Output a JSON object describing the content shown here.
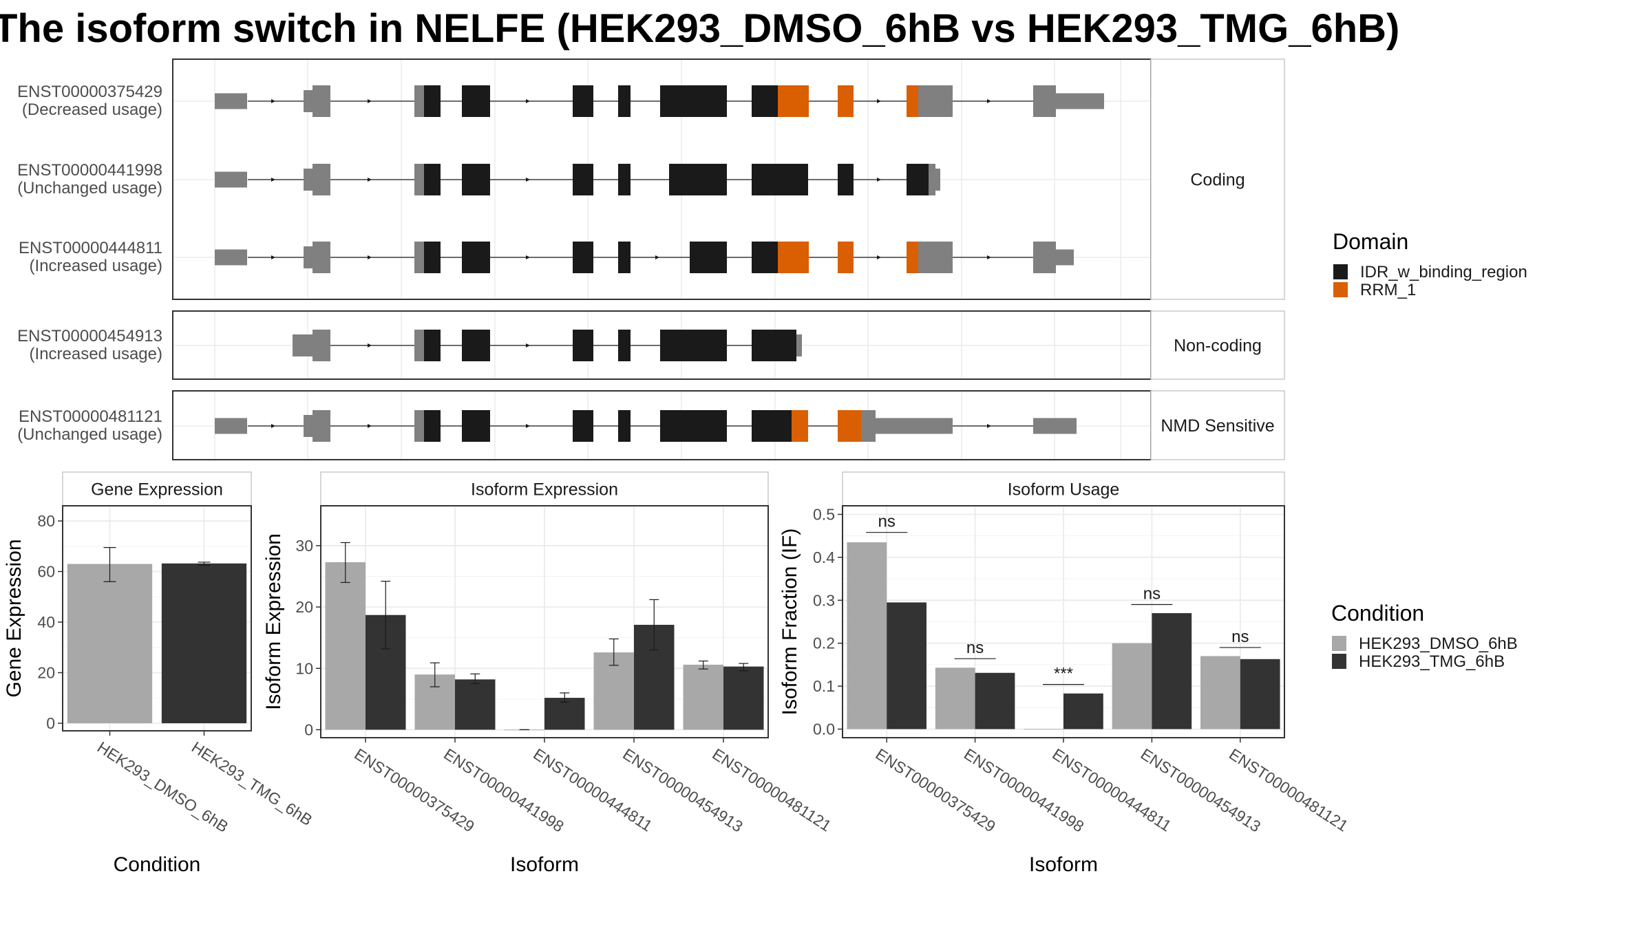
{
  "title": "The isoform switch in NELFE (HEK293_DMSO_6hB vs HEK293_TMG_6hB)",
  "colors": {
    "cond1": "#a8a8a8",
    "cond2": "#333333",
    "utr": "#808080",
    "idr": "#1a1a1a",
    "rrm": "#d95f02",
    "grid": "#ebebeb",
    "panel_border": "#333333",
    "strip_border": "#c8c8c8"
  },
  "transcripts": {
    "groups": [
      {
        "label": "Coding",
        "transcripts": [
          {
            "id": "ENST00000375429",
            "usage": "(Decreased usage)"
          },
          {
            "id": "ENST00000441998",
            "usage": "(Unchanged usage)"
          },
          {
            "id": "ENST00000444811",
            "usage": "(Increased usage)"
          }
        ]
      },
      {
        "label": "Non-coding",
        "transcripts": [
          {
            "id": "ENST00000454913",
            "usage": "(Increased usage)"
          }
        ]
      },
      {
        "label": "NMD Sensitive",
        "transcripts": [
          {
            "id": "ENST00000481121",
            "usage": "(Unchanged usage)"
          }
        ]
      }
    ]
  },
  "legends": {
    "domain": {
      "title": "Domain",
      "items": [
        {
          "label": "IDR_w_binding_region",
          "color": "#1a1a1a"
        },
        {
          "label": "RRM_1",
          "color": "#d95f02"
        }
      ]
    },
    "condition": {
      "title": "Condition",
      "items": [
        {
          "label": "HEK293_DMSO_6hB",
          "color": "#a8a8a8"
        },
        {
          "label": "HEK293_TMG_6hB",
          "color": "#333333"
        }
      ]
    }
  },
  "chart_data": [
    {
      "type": "bar",
      "title": "Gene Expression",
      "xlabel": "Condition",
      "ylabel": "Gene Expression",
      "categories": [
        "HEK293_DMSO_6hB",
        "HEK293_TMG_6hB"
      ],
      "values": [
        63,
        63.2
      ],
      "errors": [
        [
          56,
          69.5
        ],
        [
          62.5,
          63.7
        ]
      ],
      "ylim": [
        -3,
        86
      ],
      "yticks": [
        0,
        20,
        40,
        60,
        80
      ],
      "grid": true
    },
    {
      "type": "bar",
      "title": "Isoform Expression",
      "xlabel": "Isoform",
      "ylabel": "Isoform Expression",
      "categories": [
        "ENST00000375429",
        "ENST00000441998",
        "ENST00000444811",
        "ENST00000454913",
        "ENST00000481121"
      ],
      "series": [
        {
          "name": "HEK293_DMSO_6hB",
          "values": [
            27.3,
            9.0,
            0.0,
            12.6,
            10.6
          ],
          "errors": [
            [
              24.0,
              30.5
            ],
            [
              7.0,
              10.9
            ],
            [
              0.0,
              0.0
            ],
            [
              10.5,
              14.8
            ],
            [
              9.9,
              11.2
            ]
          ]
        },
        {
          "name": "HEK293_TMG_6hB",
          "values": [
            18.7,
            8.2,
            5.2,
            17.1,
            10.3
          ],
          "errors": [
            [
              13.2,
              24.2
            ],
            [
              7.5,
              9.1
            ],
            [
              4.5,
              6.0
            ],
            [
              13.0,
              21.2
            ],
            [
              9.6,
              10.8
            ]
          ]
        }
      ],
      "ylim": [
        -1.3,
        36.5
      ],
      "yticks": [
        0,
        10,
        20,
        30
      ],
      "grid": true
    },
    {
      "type": "bar",
      "title": "Isoform Usage",
      "xlabel": "Isoform",
      "ylabel": "Isoform Fraction (IF)",
      "categories": [
        "ENST00000375429",
        "ENST00000441998",
        "ENST00000444811",
        "ENST00000454913",
        "ENST00000481121"
      ],
      "series": [
        {
          "name": "HEK293_DMSO_6hB",
          "values": [
            0.435,
            0.143,
            0.0,
            0.2,
            0.17
          ]
        },
        {
          "name": "HEK293_TMG_6hB",
          "values": [
            0.295,
            0.131,
            0.083,
            0.27,
            0.163
          ]
        }
      ],
      "significance": [
        "ns",
        "ns",
        "***",
        "ns",
        "ns"
      ],
      "significance_y": [
        0.458,
        0.164,
        0.104,
        0.29,
        0.19
      ],
      "ylim": [
        -0.02,
        0.52
      ],
      "yticks": [
        0.0,
        0.1,
        0.2,
        0.3,
        0.4,
        0.5
      ],
      "ytick_labels": [
        "0.0",
        "0.1",
        "0.2",
        "0.3",
        "0.4",
        "0.5"
      ],
      "grid": true
    }
  ]
}
